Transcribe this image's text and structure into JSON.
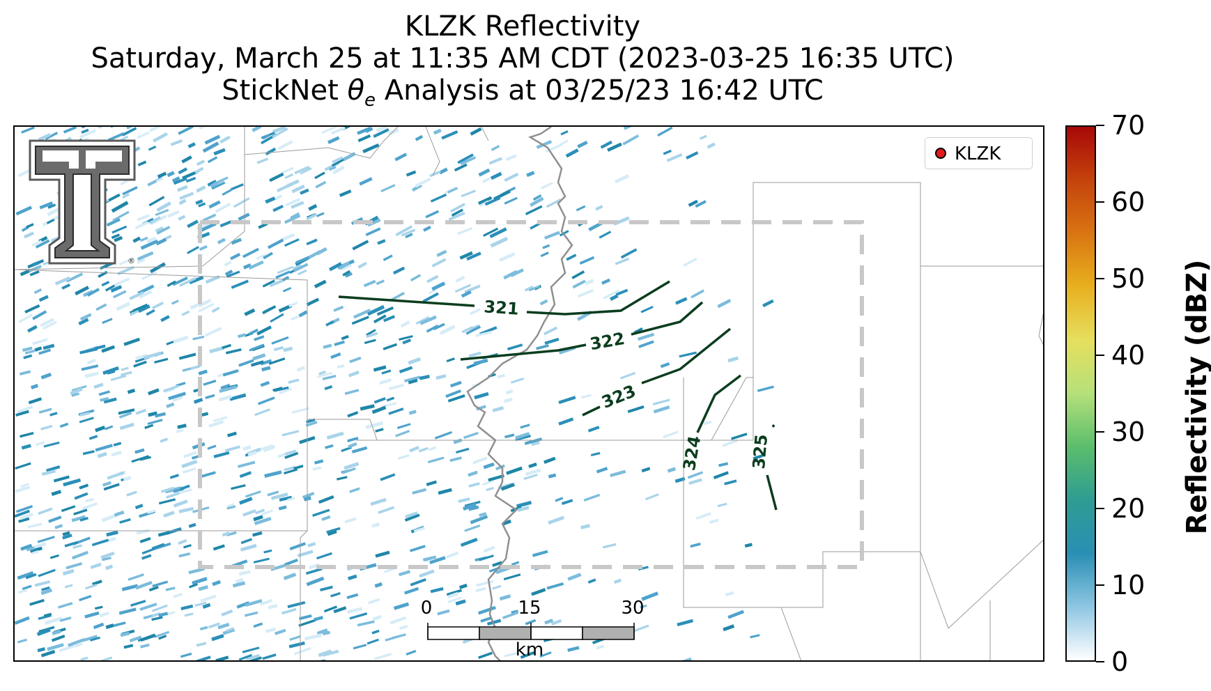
{
  "title": {
    "line1": "KLZK Reflectivity",
    "line2": "Saturday, March 25 at 11:35 AM CDT (2023-03-25 16:35 UTC)",
    "line3_prefix": "StickNet ",
    "line3_symbol": "θ",
    "line3_sub": "e",
    "line3_suffix": " Analysis at 03/25/23 16:42 UTC"
  },
  "logo": {
    "name": "texas-tech-double-t-logo",
    "text": "®"
  },
  "legend": {
    "label": "KLZK",
    "marker_color": "#e41a1c"
  },
  "contours": {
    "color": "#0b3d1e",
    "levels": [
      "321",
      "322",
      "323",
      "324",
      "325"
    ]
  },
  "scale_bar": {
    "ticks": [
      "0",
      "15",
      "30"
    ],
    "unit": "km"
  },
  "colorbar": {
    "label": "Reflectivity (dBZ)",
    "ticks": [
      "0",
      "10",
      "20",
      "30",
      "40",
      "50",
      "60",
      "70"
    ],
    "range": [
      0,
      70
    ],
    "colors": [
      "#ffffff",
      "#8ec6e2",
      "#2a8fb4",
      "#2e9c93",
      "#5bbd6c",
      "#b5e07a",
      "#e6df5e",
      "#e8b020",
      "#d97512",
      "#c4430c",
      "#a80808"
    ]
  }
}
